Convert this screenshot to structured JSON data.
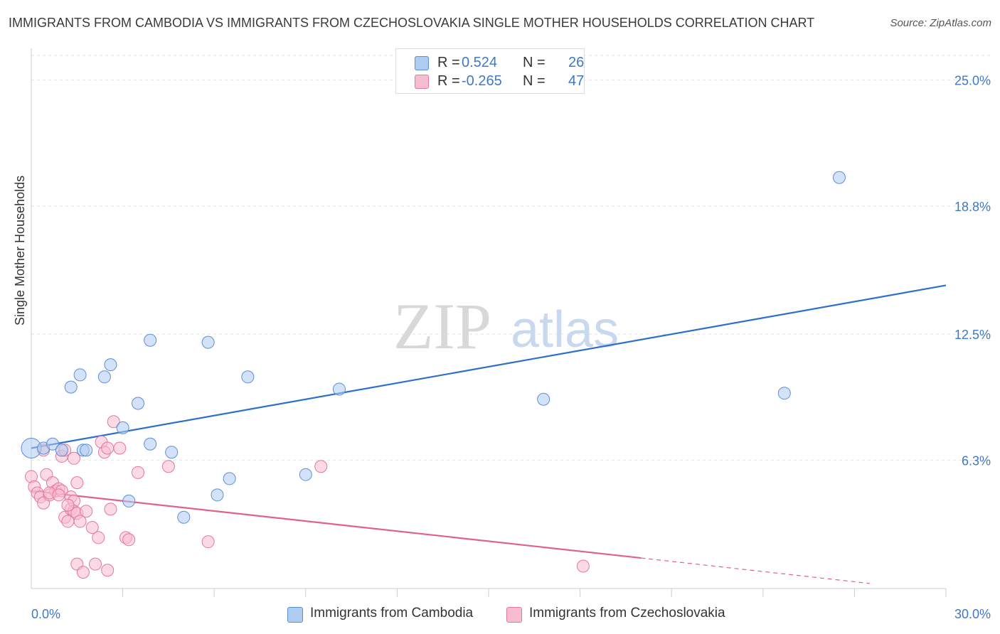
{
  "title": "IMMIGRANTS FROM CAMBODIA VS IMMIGRANTS FROM CZECHOSLOVAKIA SINGLE MOTHER HOUSEHOLDS CORRELATION CHART",
  "source": "Source: ZipAtlas.com",
  "watermark": {
    "zip": "ZIP",
    "atlas": "atlas"
  },
  "legend": {
    "r_label": "R =",
    "n_label": "N =",
    "rows": [
      {
        "r": "0.524",
        "n": "26"
      },
      {
        "r": "-0.265",
        "n": "47"
      }
    ]
  },
  "colors": {
    "cambodia_fill": "#aecbf0",
    "cambodia_stroke": "#5b8fd8",
    "cambodia_line": "#2f6fcc",
    "czech_fill": "#f7bcd0",
    "czech_stroke": "#e2789e",
    "czech_line": "#e0608e",
    "axis_text": "#3f78c8",
    "grid": "#e3e3e3"
  },
  "chart_data": {
    "type": "scatter",
    "title": "IMMIGRANTS FROM CAMBODIA VS IMMIGRANTS FROM CZECHOSLOVAKIA SINGLE MOTHER HOUSEHOLDS CORRELATION CHART",
    "xlabel": "",
    "ylabel": "Single Mother Households",
    "xlim": [
      0,
      30
    ],
    "ylim": [
      0,
      26.2
    ],
    "x_ticks": [
      "0.0%",
      "30.0%"
    ],
    "y_ticks": [
      {
        "value": 6.3,
        "label": "6.3%"
      },
      {
        "value": 12.5,
        "label": "12.5%"
      },
      {
        "value": 18.8,
        "label": "18.8%"
      },
      {
        "value": 25.0,
        "label": "25.0%"
      }
    ],
    "grid": true,
    "legend_position": "top-center and bottom",
    "series": [
      {
        "name": "Immigrants from Cambodia",
        "points": [
          [
            0.0,
            6.9
          ],
          [
            0.4,
            6.9
          ],
          [
            0.7,
            7.1
          ],
          [
            1.0,
            6.8
          ],
          [
            1.3,
            9.9
          ],
          [
            1.6,
            10.5
          ],
          [
            1.7,
            6.8
          ],
          [
            1.8,
            6.8
          ],
          [
            2.4,
            10.4
          ],
          [
            2.6,
            11.0
          ],
          [
            3.0,
            7.9
          ],
          [
            3.2,
            4.3
          ],
          [
            3.5,
            9.1
          ],
          [
            3.9,
            7.1
          ],
          [
            3.9,
            12.2
          ],
          [
            4.6,
            6.7
          ],
          [
            5.0,
            3.5
          ],
          [
            5.8,
            12.1
          ],
          [
            6.1,
            4.6
          ],
          [
            6.5,
            5.4
          ],
          [
            7.1,
            10.4
          ],
          [
            9.0,
            5.6
          ],
          [
            10.1,
            9.8
          ],
          [
            16.8,
            9.3
          ],
          [
            24.7,
            9.6
          ],
          [
            26.5,
            20.2
          ]
        ],
        "trend": {
          "x": [
            0,
            30
          ],
          "y": [
            6.9,
            14.9
          ]
        }
      },
      {
        "name": "Immigrants from Czechoslovakia",
        "points": [
          [
            0.0,
            5.5
          ],
          [
            0.1,
            5.0
          ],
          [
            0.2,
            4.7
          ],
          [
            0.3,
            4.5
          ],
          [
            0.4,
            4.2
          ],
          [
            0.5,
            5.6
          ],
          [
            0.6,
            4.6
          ],
          [
            0.7,
            5.2
          ],
          [
            0.8,
            4.8
          ],
          [
            0.9,
            4.9
          ],
          [
            1.0,
            6.5
          ],
          [
            1.1,
            6.8
          ],
          [
            1.0,
            4.8
          ],
          [
            1.1,
            3.5
          ],
          [
            1.2,
            3.3
          ],
          [
            1.3,
            4.5
          ],
          [
            1.3,
            3.9
          ],
          [
            1.4,
            4.3
          ],
          [
            1.4,
            3.8
          ],
          [
            1.4,
            6.4
          ],
          [
            1.5,
            3.7
          ],
          [
            1.5,
            5.2
          ],
          [
            1.5,
            1.2
          ],
          [
            1.6,
            3.3
          ],
          [
            1.7,
            0.8
          ],
          [
            1.8,
            3.8
          ],
          [
            2.0,
            3.0
          ],
          [
            2.1,
            1.2
          ],
          [
            2.2,
            2.5
          ],
          [
            2.3,
            7.2
          ],
          [
            2.4,
            6.7
          ],
          [
            2.5,
            6.9
          ],
          [
            2.5,
            0.9
          ],
          [
            2.6,
            3.9
          ],
          [
            2.7,
            8.2
          ],
          [
            2.9,
            6.9
          ],
          [
            3.1,
            2.5
          ],
          [
            3.2,
            2.4
          ],
          [
            3.5,
            5.7
          ],
          [
            4.5,
            6.0
          ],
          [
            9.5,
            6.0
          ],
          [
            5.8,
            2.3
          ],
          [
            0.4,
            6.8
          ],
          [
            0.6,
            4.7
          ],
          [
            0.9,
            4.6
          ],
          [
            1.2,
            4.1
          ],
          [
            18.1,
            1.1
          ]
        ],
        "trend": {
          "x": [
            0,
            20
          ],
          "y": [
            4.8,
            1.5
          ]
        },
        "trend_dashed": {
          "x": [
            20,
            27.5
          ],
          "y": [
            1.5,
            0.25
          ]
        }
      }
    ]
  }
}
